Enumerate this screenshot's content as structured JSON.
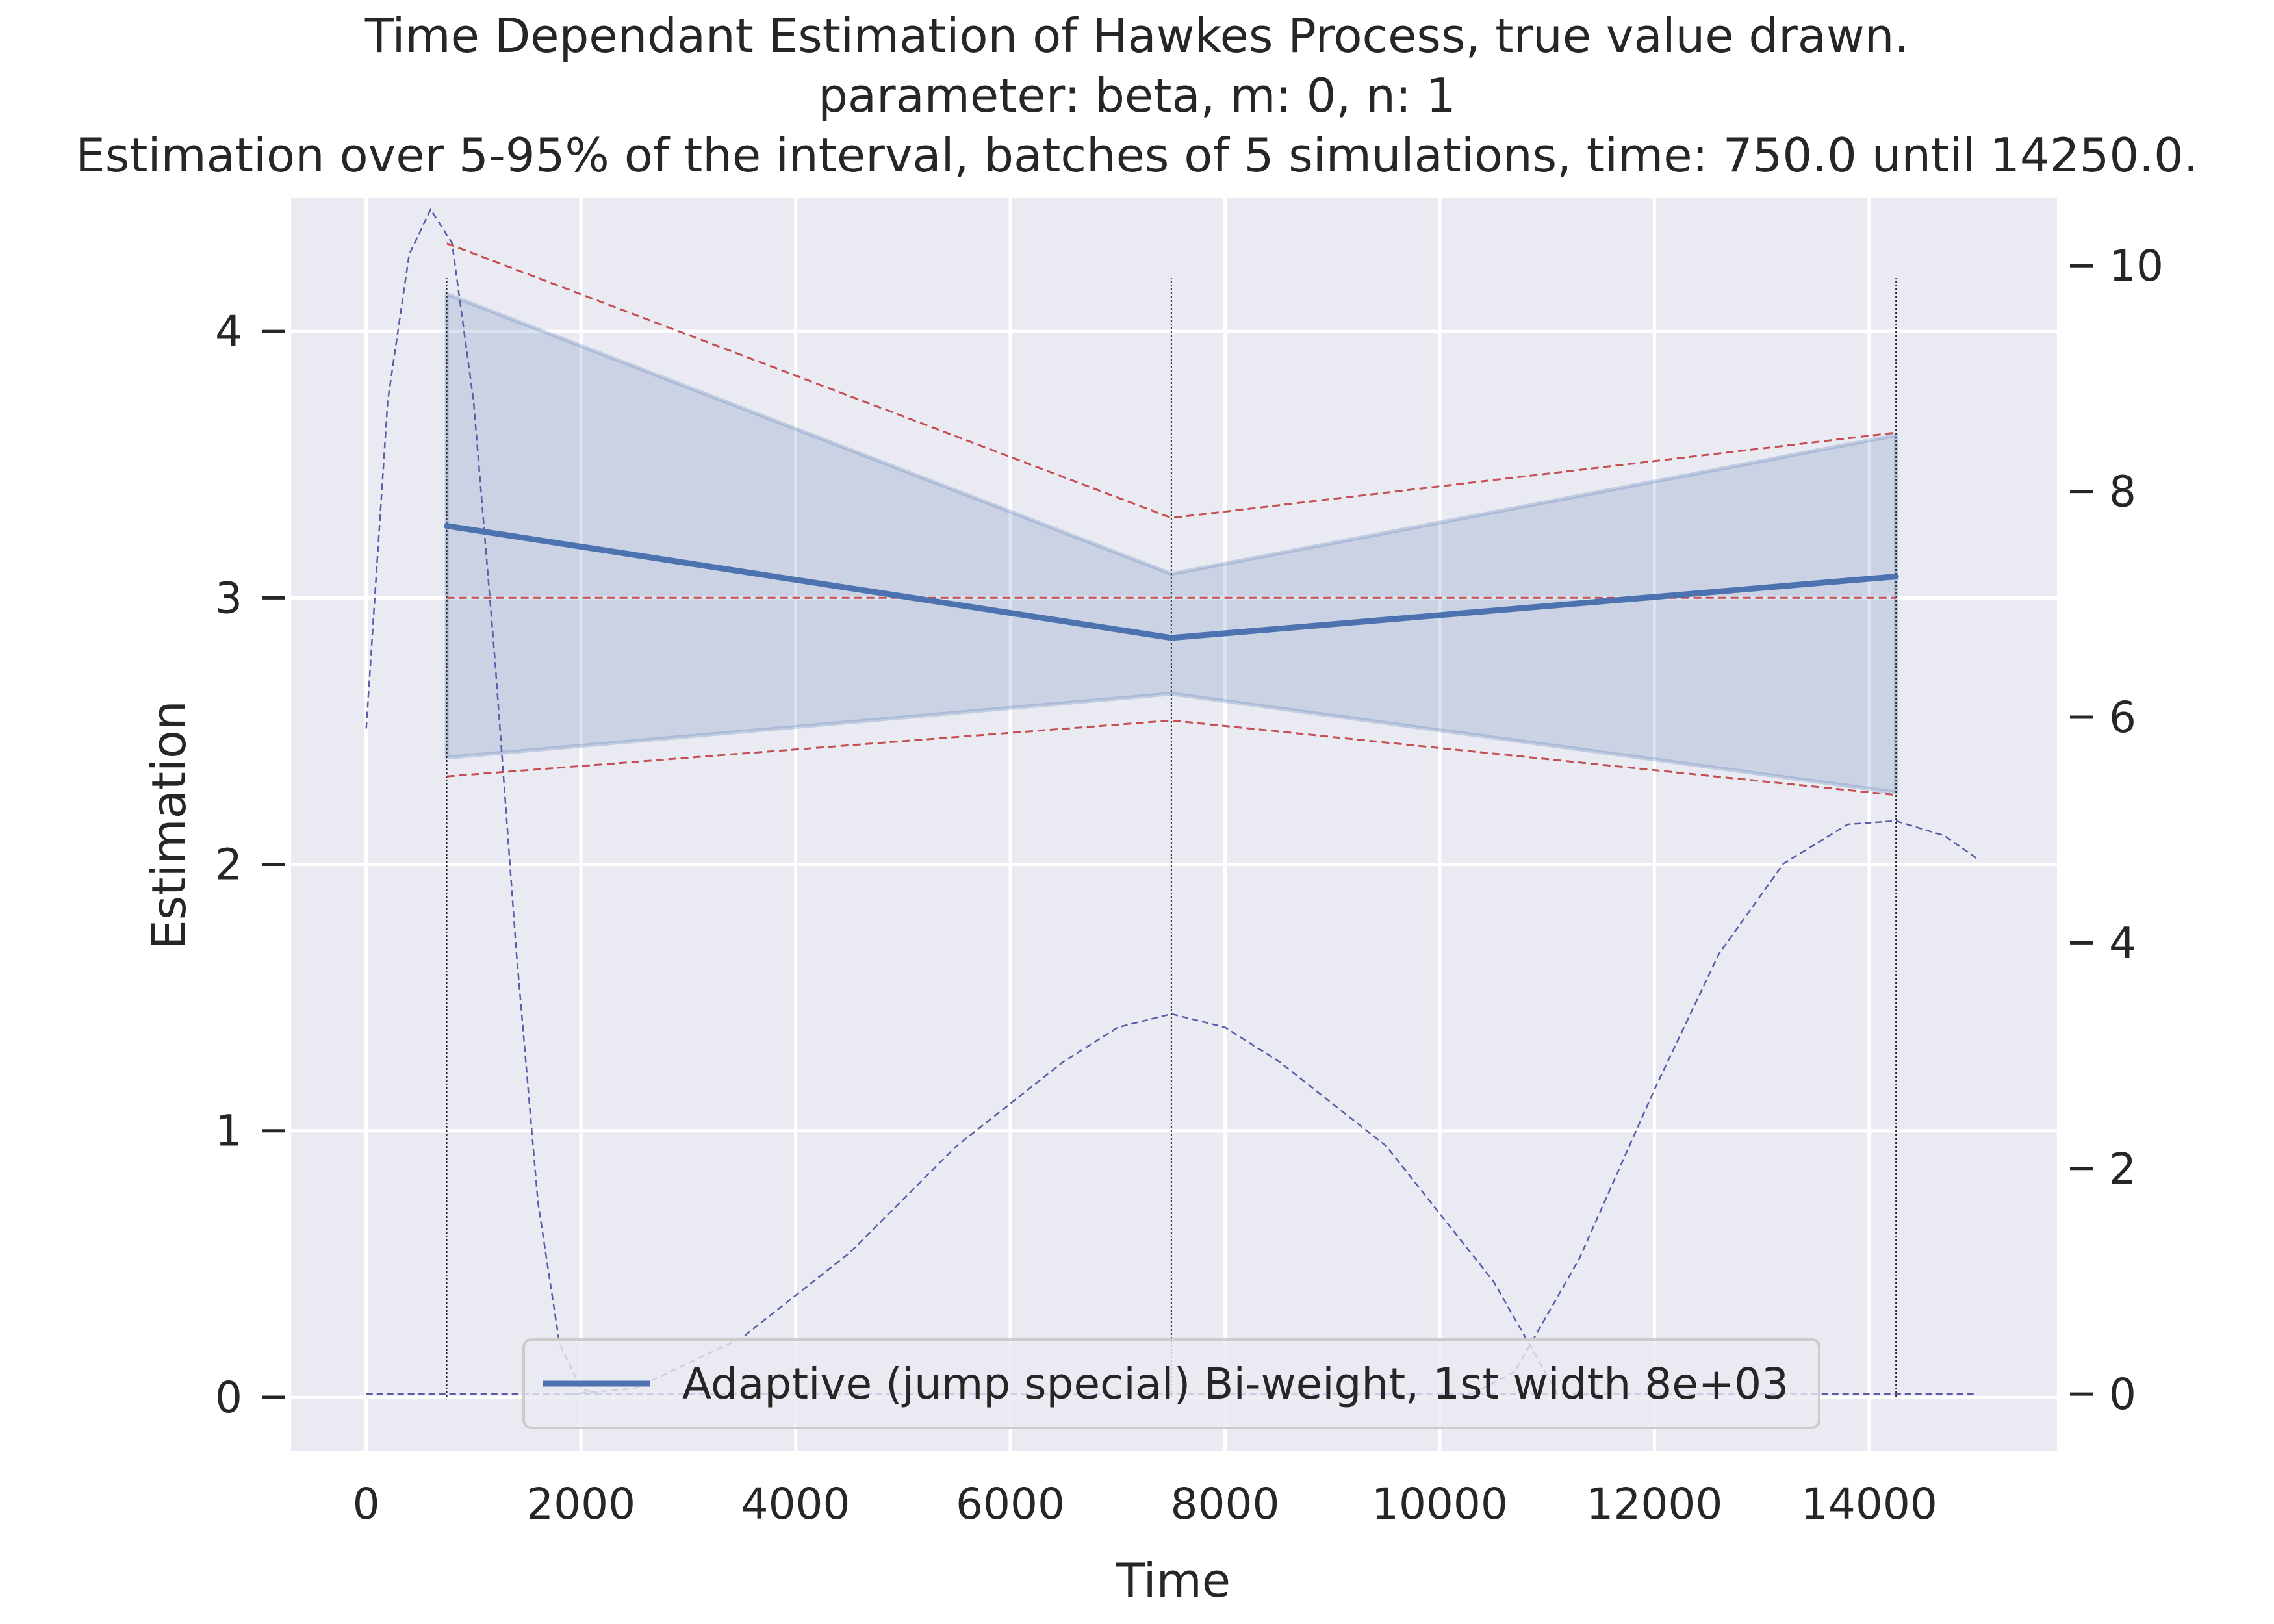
{
  "chart_data": {
    "type": "line",
    "title_lines": [
      "Time Dependant Estimation of Hawkes Process, true value drawn.",
      "parameter: beta, m: 0, n: 1",
      "Estimation over 5-95% of the interval, batches of 5 simulations, time: 750.0 until 14250.0."
    ],
    "xlabel": "Time",
    "ylabel": "Estimation",
    "xlim": [
      -700,
      15750
    ],
    "ylim": [
      -0.2,
      4.5
    ],
    "y2lim": [
      -0.5,
      10.6
    ],
    "x_ticks": [
      0,
      2000,
      4000,
      6000,
      8000,
      10000,
      12000,
      14000
    ],
    "y_ticks": [
      0,
      1,
      2,
      3,
      4
    ],
    "y2_ticks": [
      0,
      2,
      4,
      6,
      8,
      10
    ],
    "grid": true,
    "legend_position": "lower center",
    "colors": {
      "background": "#eaeaf2",
      "grid": "#ffffff",
      "mean_line": "#4c72b0",
      "band_fill": "#4c72b0",
      "red_dashed": "#c44e52",
      "kernel_dashed": "#4b4ba0",
      "vertical_lines": "#262626"
    },
    "series": [
      {
        "name": "Adaptive (jump special) Bi-weight, 1st width 8e+03",
        "style": "solid",
        "x": [
          750,
          7500,
          14250
        ],
        "y": [
          3.27,
          2.85,
          3.08
        ]
      }
    ],
    "confidence_band": {
      "x": [
        750,
        7500,
        14250
      ],
      "lower": [
        2.4,
        2.64,
        2.27
      ],
      "upper": [
        4.14,
        3.09,
        3.61
      ]
    },
    "red_dashed_lines": [
      {
        "x": [
          750,
          7500,
          14250
        ],
        "y": [
          4.33,
          3.3,
          3.62
        ]
      },
      {
        "x": [
          750,
          7500,
          14250
        ],
        "y": [
          3.0,
          3.0,
          3.0
        ]
      },
      {
        "x": [
          750,
          7500,
          14250
        ],
        "y": [
          2.33,
          2.54,
          2.26
        ]
      }
    ],
    "vertical_markers": {
      "x": [
        750,
        7500,
        14250
      ],
      "y_from": 0,
      "y_to": 4.2
    },
    "kernel_curves_secondary_axis": [
      {
        "x": [
          0,
          200,
          400,
          600,
          800,
          1000,
          1200,
          1400,
          1600,
          1800,
          2000,
          2150
        ],
        "y": [
          5.9,
          8.8,
          10.1,
          10.5,
          10.2,
          8.8,
          6.5,
          3.9,
          1.7,
          0.45,
          0.05,
          0.0
        ]
      },
      {
        "x": [
          1900,
          2500,
          3500,
          4500,
          5500,
          6500,
          7000,
          7500,
          8000,
          8500,
          9500,
          10500,
          11100
        ],
        "y": [
          0.0,
          0.05,
          0.5,
          1.25,
          2.2,
          2.95,
          3.25,
          3.37,
          3.25,
          2.95,
          2.2,
          1.0,
          0.0
        ]
      },
      {
        "x": [
          10300,
          10700,
          11300,
          12000,
          12600,
          13200,
          13800,
          14250,
          14700,
          15000
        ],
        "y": [
          0.0,
          0.2,
          1.2,
          2.7,
          3.9,
          4.7,
          5.05,
          5.08,
          4.95,
          4.75
        ]
      },
      {
        "x": [
          0,
          15000
        ],
        "y": [
          0,
          0
        ]
      }
    ]
  }
}
